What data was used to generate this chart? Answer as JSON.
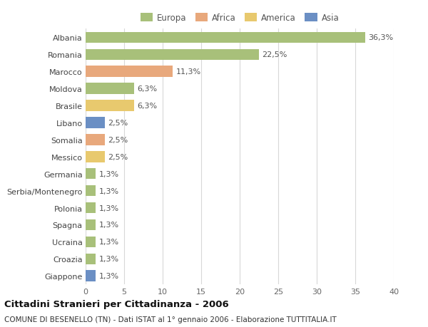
{
  "countries": [
    "Albania",
    "Romania",
    "Marocco",
    "Moldova",
    "Brasile",
    "Libano",
    "Somalia",
    "Messico",
    "Germania",
    "Serbia/Montenegro",
    "Polonia",
    "Spagna",
    "Ucraina",
    "Croazia",
    "Giappone"
  ],
  "values": [
    36.3,
    22.5,
    11.3,
    6.3,
    6.3,
    2.5,
    2.5,
    2.5,
    1.3,
    1.3,
    1.3,
    1.3,
    1.3,
    1.3,
    1.3
  ],
  "labels": [
    "36,3%",
    "22,5%",
    "11,3%",
    "6,3%",
    "6,3%",
    "2,5%",
    "2,5%",
    "2,5%",
    "1,3%",
    "1,3%",
    "1,3%",
    "1,3%",
    "1,3%",
    "1,3%",
    "1,3%"
  ],
  "colors": [
    "#a8c07a",
    "#a8c07a",
    "#e8a87c",
    "#a8c07a",
    "#e8c96e",
    "#6b8fc4",
    "#e8a87c",
    "#e8c96e",
    "#a8c07a",
    "#a8c07a",
    "#a8c07a",
    "#a8c07a",
    "#a8c07a",
    "#a8c07a",
    "#6b8fc4"
  ],
  "legend": {
    "Europa": "#a8c07a",
    "Africa": "#e8a87c",
    "America": "#e8c96e",
    "Asia": "#6b8fc4"
  },
  "xlim": [
    0,
    40
  ],
  "xticks": [
    0,
    5,
    10,
    15,
    20,
    25,
    30,
    35,
    40
  ],
  "title": "Cittadini Stranieri per Cittadinanza - 2006",
  "subtitle": "COMUNE DI BESENELLO (TN) - Dati ISTAT al 1° gennaio 2006 - Elaborazione TUTTITALIA.IT",
  "bg_color": "#ffffff",
  "grid_color": "#d8d8d8",
  "bar_height": 0.65,
  "label_fontsize": 8,
  "tick_fontsize": 8,
  "title_fontsize": 9.5,
  "subtitle_fontsize": 7.5
}
